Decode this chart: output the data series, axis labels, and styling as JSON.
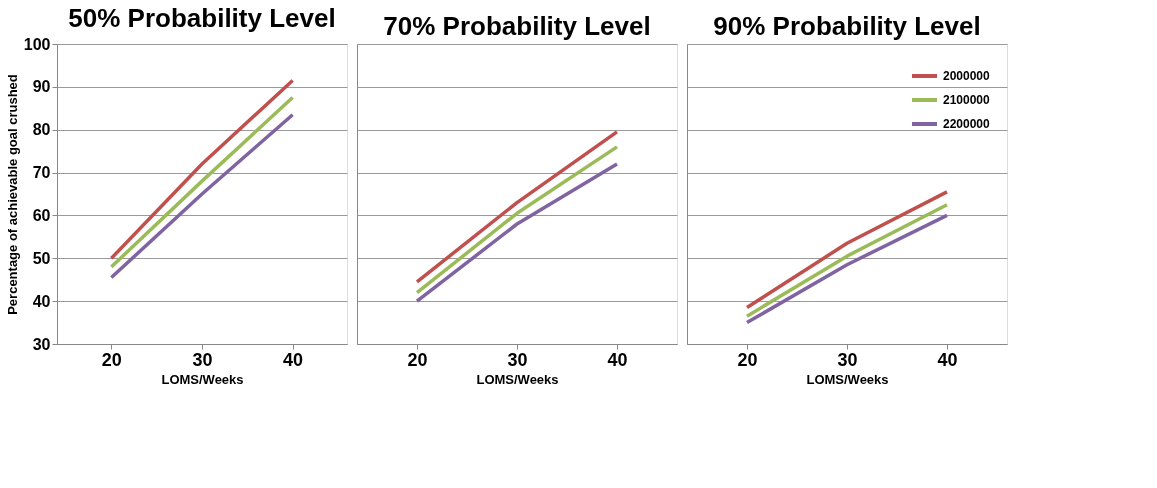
{
  "chart_data": [
    {
      "type": "line",
      "title": "50% Probability Level",
      "xlabel": "LOMS/Weeks",
      "ylabel": "Percentage of achievable goal crushed",
      "x": [
        20,
        30,
        40
      ],
      "xlim": [
        14,
        46
      ],
      "xticks": [
        20,
        30,
        40
      ],
      "ylim": [
        30,
        100
      ],
      "yticks": [
        30,
        40,
        50,
        60,
        70,
        80,
        90,
        100
      ],
      "grid": "y",
      "marker": "none",
      "line_style": "solid",
      "series": [
        {
          "color": "#c0504d",
          "values": [
            50,
            72,
            91.5
          ]
        },
        {
          "color": "#9bbb59",
          "values": [
            48,
            68,
            87.5
          ]
        },
        {
          "color": "#8064a2",
          "values": [
            45.5,
            65,
            83.5
          ]
        }
      ]
    },
    {
      "type": "line",
      "title": "70% Probability Level",
      "xlabel": "LOMS/Weeks",
      "x": [
        20,
        30,
        40
      ],
      "xlim": [
        14,
        46
      ],
      "xticks": [
        20,
        30,
        40
      ],
      "ylim": [
        30,
        100
      ],
      "yticks": [
        30,
        40,
        50,
        60,
        70,
        80,
        90,
        100
      ],
      "tick_labels": "x",
      "grid": "y",
      "marker": "none",
      "line_style": "solid",
      "series": [
        {
          "color": "#c0504d",
          "values": [
            44.5,
            63,
            79.5
          ]
        },
        {
          "color": "#9bbb59",
          "values": [
            42,
            60.5,
            76
          ]
        },
        {
          "color": "#8064a2",
          "values": [
            40,
            58,
            72
          ]
        }
      ]
    },
    {
      "type": "line",
      "title": "90% Probability Level",
      "xlabel": "LOMS/Weeks",
      "x": [
        20,
        30,
        40
      ],
      "xlim": [
        14,
        46
      ],
      "xticks": [
        20,
        30,
        40
      ],
      "ylim": [
        30,
        100
      ],
      "yticks": [
        30,
        40,
        50,
        60,
        70,
        80,
        90,
        100
      ],
      "tick_labels": "x",
      "grid": "y",
      "legend": "top right",
      "marker": "none",
      "line_style": "solid",
      "series": [
        {
          "name": "2000000",
          "color": "#c0504d",
          "values": [
            38.5,
            53.5,
            65.5
          ]
        },
        {
          "name": "2100000",
          "color": "#9bbb59",
          "values": [
            36.5,
            50.5,
            62.5
          ]
        },
        {
          "name": "2200000",
          "color": "#8064a2",
          "values": [
            35,
            48.5,
            60
          ]
        }
      ]
    }
  ]
}
